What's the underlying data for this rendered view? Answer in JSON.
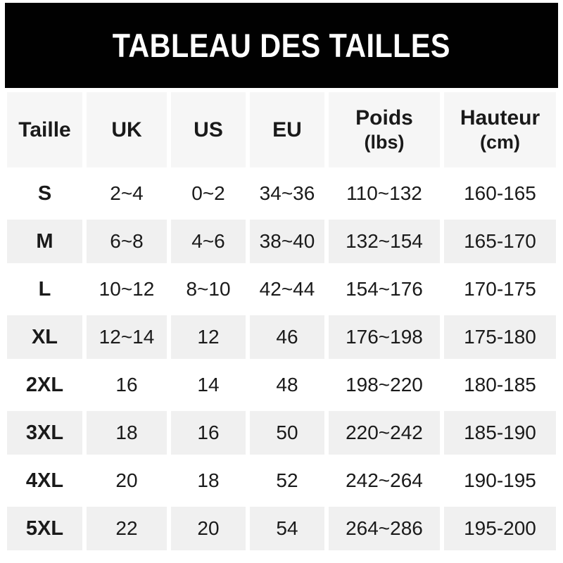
{
  "title": "TABLEAU DES TAILLES",
  "colors": {
    "banner_bg": "#010101",
    "banner_text": "#ffffff",
    "header_bg": "#f6f6f6",
    "shaded_row_bg": "#f0f0f0",
    "white_row_bg": "#ffffff",
    "text": "#1a1a1a"
  },
  "table": {
    "columns": [
      {
        "label": "Taille",
        "sub": ""
      },
      {
        "label": "UK",
        "sub": ""
      },
      {
        "label": "US",
        "sub": ""
      },
      {
        "label": "EU",
        "sub": ""
      },
      {
        "label": "Poids",
        "sub": "(lbs)"
      },
      {
        "label": "Hauteur",
        "sub": "(cm)"
      }
    ],
    "rows": [
      {
        "taille": "S",
        "uk": "2~4",
        "us": "0~2",
        "eu": "34~36",
        "poids": "110~132",
        "hauteur": "160-165"
      },
      {
        "taille": "M",
        "uk": "6~8",
        "us": "4~6",
        "eu": "38~40",
        "poids": "132~154",
        "hauteur": "165-170"
      },
      {
        "taille": "L",
        "uk": "10~12",
        "us": "8~10",
        "eu": "42~44",
        "poids": "154~176",
        "hauteur": "170-175"
      },
      {
        "taille": "XL",
        "uk": "12~14",
        "us": "12",
        "eu": "46",
        "poids": "176~198",
        "hauteur": "175-180"
      },
      {
        "taille": "2XL",
        "uk": "16",
        "us": "14",
        "eu": "48",
        "poids": "198~220",
        "hauteur": "180-185"
      },
      {
        "taille": "3XL",
        "uk": "18",
        "us": "16",
        "eu": "50",
        "poids": "220~242",
        "hauteur": "185-190"
      },
      {
        "taille": "4XL",
        "uk": "20",
        "us": "18",
        "eu": "52",
        "poids": "242~264",
        "hauteur": "190-195"
      },
      {
        "taille": "5XL",
        "uk": "22",
        "us": "20",
        "eu": "54",
        "poids": "264~286",
        "hauteur": "195-200"
      }
    ]
  }
}
